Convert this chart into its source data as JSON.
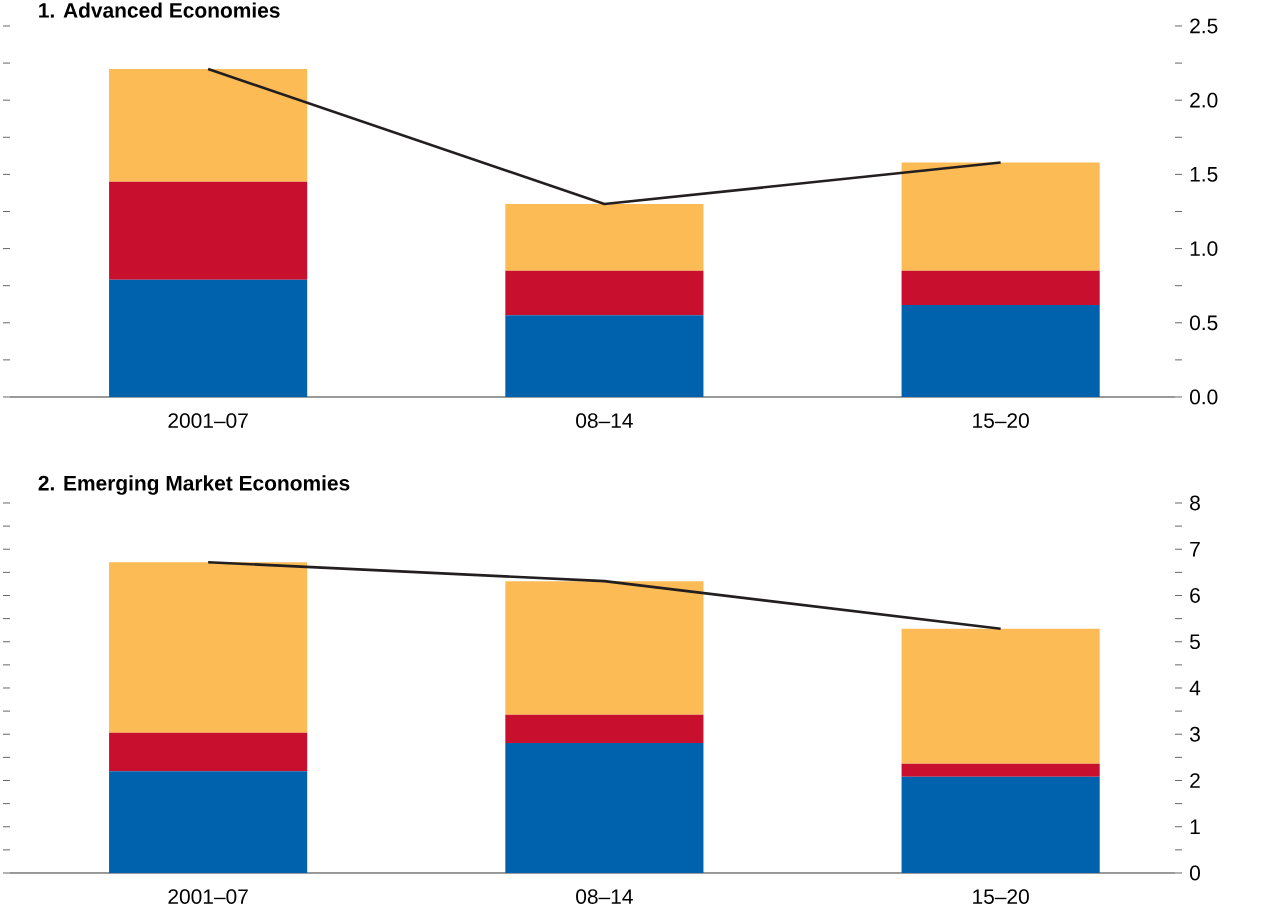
{
  "chart_data": [
    {
      "type": "bar",
      "title": "1. Advanced Economies",
      "categories": [
        "2001–07",
        "08–14",
        "15–20"
      ],
      "stacked": true,
      "series": [
        {
          "color": "#0061ad",
          "values": [
            0.79,
            0.55,
            0.62
          ]
        },
        {
          "color": "#c8102e",
          "values": [
            0.66,
            0.3,
            0.23
          ]
        },
        {
          "color": "#fdbb55",
          "values": [
            0.76,
            0.45,
            0.73
          ]
        },
        {
          "type": "line",
          "color": "#231f20",
          "values": [
            2.21,
            1.3,
            1.58
          ]
        }
      ],
      "ylim": [
        0,
        2.5
      ],
      "yticks": [
        {
          "value": 0,
          "label": "0.0"
        },
        {
          "value": 0.25,
          "label": null
        },
        {
          "value": 0.5,
          "label": "0.5"
        },
        {
          "value": 0.75,
          "label": null
        },
        {
          "value": 1,
          "label": "1.0"
        },
        {
          "value": 1.25,
          "label": null
        },
        {
          "value": 1.5,
          "label": "1.5"
        },
        {
          "value": 1.75,
          "label": null
        },
        {
          "value": 2,
          "label": "2.0"
        },
        {
          "value": 2.25,
          "label": null
        },
        {
          "value": 2.5,
          "label": "2.5"
        }
      ]
    },
    {
      "type": "bar",
      "title": "2. Emerging Market Economies",
      "categories": [
        "2001–07",
        "08–14",
        "15–20"
      ],
      "stacked": true,
      "series": [
        {
          "color": "#0061ad",
          "values": [
            2.2,
            2.81,
            2.08
          ]
        },
        {
          "color": "#c8102e",
          "values": [
            0.83,
            0.61,
            0.28
          ]
        },
        {
          "color": "#fdbb55",
          "values": [
            3.69,
            2.89,
            2.92
          ]
        },
        {
          "type": "line",
          "color": "#231f20",
          "values": [
            6.72,
            6.31,
            5.28
          ]
        }
      ],
      "ylim": [
        0,
        8
      ],
      "yticks": [
        0,
        {
          "value": 0.5,
          "label": null
        },
        1,
        {
          "value": 1.5,
          "label": null
        },
        2,
        {
          "value": 2.5,
          "label": null
        },
        3,
        {
          "value": 3.5,
          "label": null
        },
        4,
        {
          "value": 4.5,
          "label": null
        },
        5,
        {
          "value": 5.5,
          "label": null
        },
        6,
        {
          "value": 6.5,
          "label": null
        },
        7,
        {
          "value": 7.5,
          "label": null
        },
        8
      ]
    }
  ]
}
